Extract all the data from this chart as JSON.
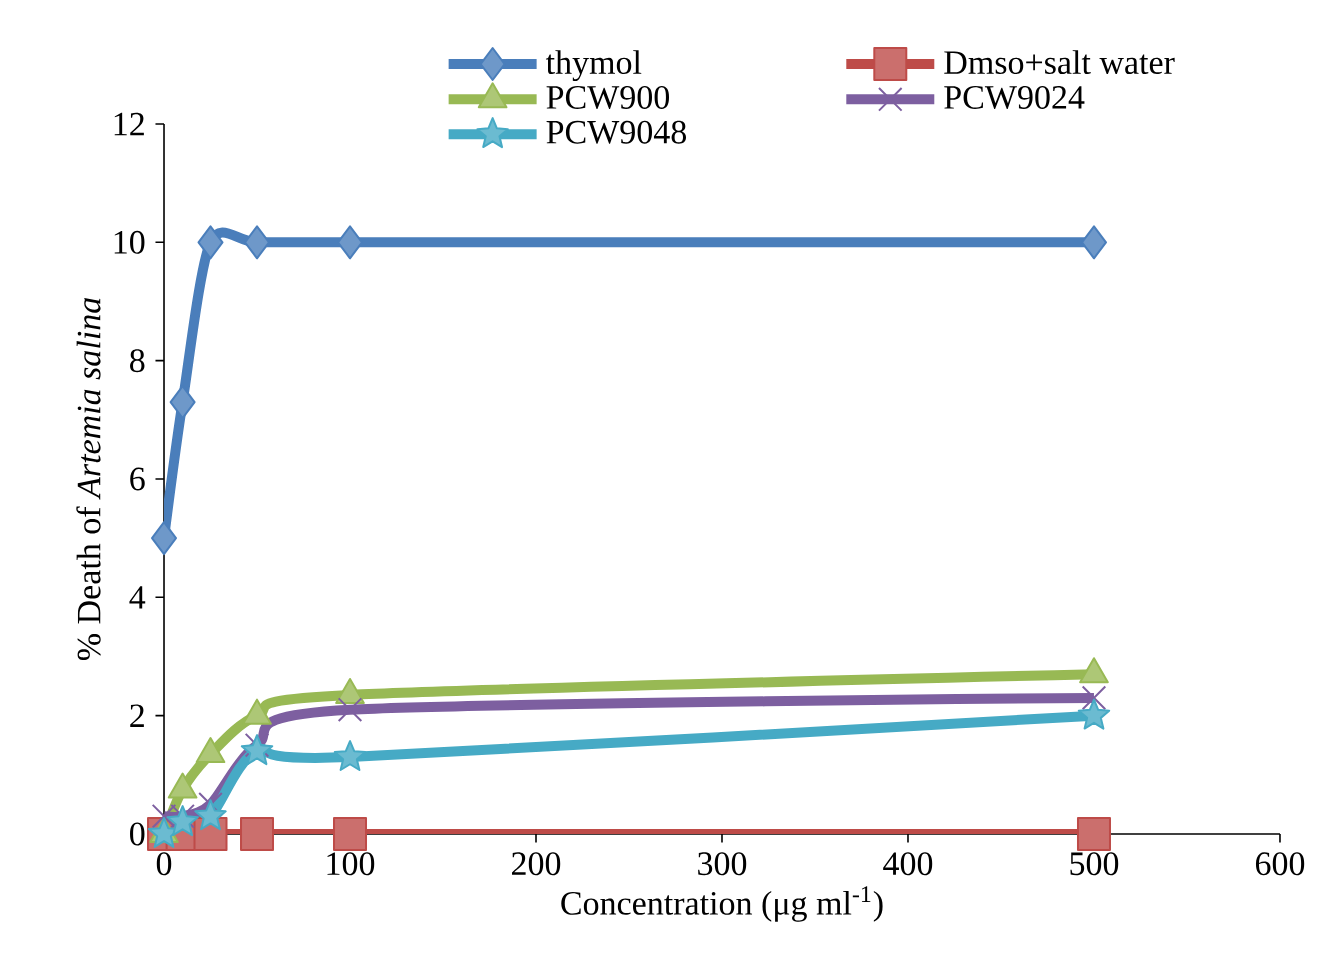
{
  "chart_data": {
    "type": "line",
    "xlabel": "Concentration (μg ml$^{-1}$)",
    "ylabel": "% Death of *Artemia salina*",
    "x": [
      0,
      10,
      25,
      50,
      100,
      500
    ],
    "series": [
      {
        "name": "thymol",
        "color": "#4a7ebb",
        "marker": "diamond",
        "values": [
          5,
          7.3,
          10,
          10,
          10,
          10
        ]
      },
      {
        "name": "Dmso+salt water",
        "color": "#be4b48",
        "marker": "square",
        "values": [
          0,
          0,
          0,
          0,
          0,
          0
        ]
      },
      {
        "name": "PCW900",
        "color": "#98b954",
        "marker": "triangle",
        "values": [
          0,
          0.75,
          1.35,
          2,
          2.35,
          2.7
        ]
      },
      {
        "name": "PCW9024",
        "color": "#7d5fa0",
        "marker": "cross",
        "values": [
          0.3,
          0.3,
          0.5,
          1.5,
          2.1,
          2.3
        ]
      },
      {
        "name": "PCW9048",
        "color": "#46aac5",
        "marker": "star",
        "values": [
          0,
          0.2,
          0.3,
          1.4,
          1.3,
          2
        ]
      }
    ],
    "xlim": [
      0,
      600
    ],
    "xticks": [
      0,
      100,
      200,
      300,
      400,
      500,
      600
    ],
    "ylim": [
      0,
      12
    ],
    "yticks": [
      0,
      2,
      4,
      6,
      8,
      10,
      12
    ],
    "grid": false,
    "legend": "top",
    "line_style": "solid"
  }
}
